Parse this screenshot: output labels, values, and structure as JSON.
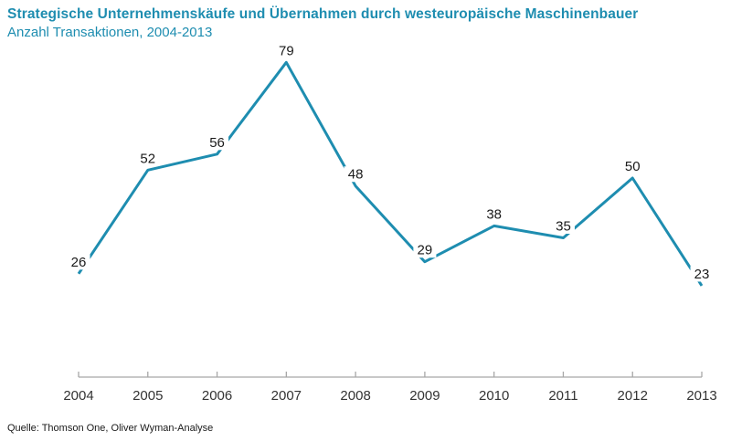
{
  "colors": {
    "accent": "#1e8db0",
    "line": "#1e8db0",
    "axis": "#a7a7a7",
    "tick_label": "#333333",
    "data_label": "#1a1a1a",
    "background": "#ffffff"
  },
  "chart_data": {
    "type": "line",
    "title": "Strategische Unternehmenskäufe und Übernahmen durch westeuropäische Maschinenbauer",
    "subtitle": "Anzahl Transaktionen, 2004-2013",
    "categories": [
      "2004",
      "2005",
      "2006",
      "2007",
      "2008",
      "2009",
      "2010",
      "2011",
      "2012",
      "2013"
    ],
    "values": [
      26,
      52,
      56,
      79,
      48,
      29,
      38,
      35,
      50,
      23
    ],
    "series_name": "Anzahl Transaktionen",
    "xlabel": "",
    "ylabel": "",
    "ylim": [
      0,
      95
    ],
    "grid": false,
    "y_axis_shown": false,
    "legend": "none",
    "data_labels_shown": true,
    "source": "Quelle: Thomson One, Oliver Wyman-Analyse"
  }
}
